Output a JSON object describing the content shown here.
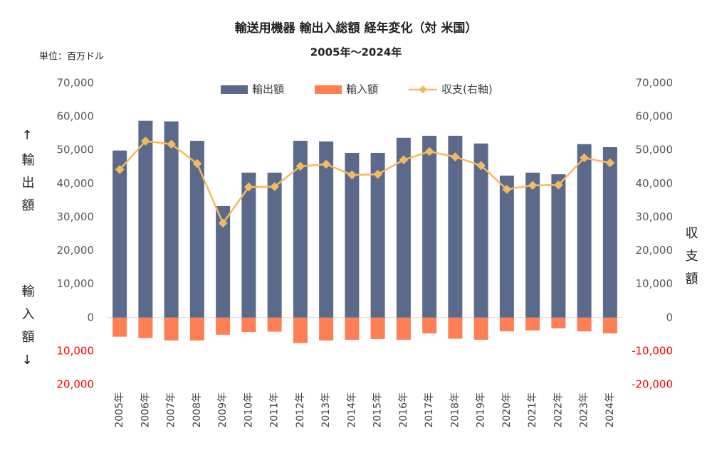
{
  "chart_data": {
    "type": "bar_line",
    "title": "輸送用機器 輸出入総額 経年変化（対 米国）",
    "subtitle": "2005年～2024年",
    "unit_label": "単位：百万ドル",
    "y_label_top": "↑輸出額",
    "y_label_bottom": "輸入額↓",
    "y2_label": "収支額",
    "categories": [
      "2005年",
      "2006年",
      "2007年",
      "2008年",
      "2009年",
      "2010年",
      "2011年",
      "2012年",
      "2013年",
      "2014年",
      "2015年",
      "2016年",
      "2017年",
      "2018年",
      "2019年",
      "2020年",
      "2021年",
      "2022年",
      "2023年",
      "2024年"
    ],
    "series": [
      {
        "name": "輸出額",
        "type": "bar",
        "color": "#5b6a8a",
        "values": [
          49900,
          58800,
          58600,
          52800,
          33300,
          43300,
          43300,
          52800,
          52600,
          49200,
          49200,
          53700,
          54300,
          54300,
          52000,
          42400,
          43300,
          42800,
          51800,
          50900
        ]
      },
      {
        "name": "輸入額",
        "type": "bar",
        "color": "#ff7f55",
        "values": [
          -5700,
          -6100,
          -6800,
          -6800,
          -5100,
          -4300,
          -4200,
          -7600,
          -6800,
          -6600,
          -6400,
          -6600,
          -4700,
          -6300,
          -6600,
          -4100,
          -3800,
          -3200,
          -4100,
          -4700
        ]
      },
      {
        "name": "収支(右軸)",
        "type": "line",
        "axis": "y2",
        "color": "#f5b95f",
        "values": [
          44200,
          52700,
          51800,
          46000,
          28200,
          39000,
          39100,
          45200,
          45800,
          42600,
          42800,
          47100,
          49600,
          48000,
          45400,
          38300,
          39500,
          39600,
          47700,
          46200
        ]
      }
    ],
    "ylim": [
      -20000,
      70000
    ],
    "yticks": [
      {
        "value": -20000,
        "label": "20,000"
      },
      {
        "value": -10000,
        "label": "10,000"
      },
      0,
      {
        "value": 10000,
        "label": "10,000"
      },
      {
        "value": 20000,
        "label": "20,000"
      },
      {
        "value": 30000,
        "label": "30,000"
      },
      {
        "value": 40000,
        "label": "40,000"
      },
      {
        "value": 50000,
        "label": "50,000"
      },
      {
        "value": 60000,
        "label": "60,000"
      },
      {
        "value": 70000,
        "label": "70,000"
      }
    ],
    "y2lim": [
      -20000,
      70000
    ],
    "y2ticks": [
      {
        "value": -20000,
        "label": "-20,000"
      },
      {
        "value": -10000,
        "label": "-10,000"
      },
      0,
      {
        "value": 10000,
        "label": "10,000"
      },
      {
        "value": 20000,
        "label": "20,000"
      },
      {
        "value": 30000,
        "label": "30,000"
      },
      {
        "value": 40000,
        "label": "40,000"
      },
      {
        "value": 50000,
        "label": "50,000"
      },
      {
        "value": 60000,
        "label": "60,000"
      },
      {
        "value": 70000,
        "label": "70,000"
      }
    ],
    "legend": "top"
  }
}
